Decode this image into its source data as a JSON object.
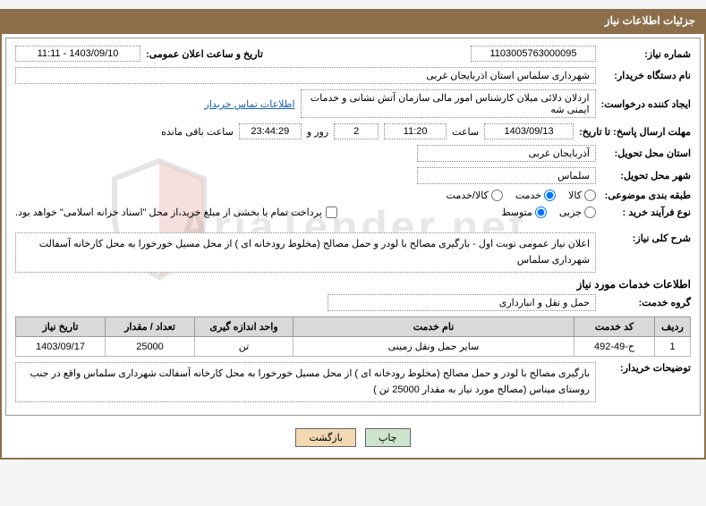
{
  "panel_title": "جزئیات اطلاعات نیاز",
  "labels": {
    "need_no": "شماره نیاز:",
    "announce_dt": "تاریخ و ساعت اعلان عمومی:",
    "buyer_org": "نام دستگاه خریدار:",
    "requester": "ایجاد کننده درخواست:",
    "contact_link": "اطلاعات تماس خریدار",
    "deadline": "مهلت ارسال پاسخ: تا تاریخ:",
    "time_label": "ساعت",
    "days_and": "روز و",
    "time_remaining": "ساعت باقی مانده",
    "province": "استان محل تحویل:",
    "city": "شهر محل تحویل:",
    "category": "طبقه بندی موضوعی:",
    "category_opts": {
      "goods": "کالا",
      "service": "خدمت",
      "goods_service": "کالا/خدمت"
    },
    "purchase_type": "نوع فرآیند خرید :",
    "purchase_opts": {
      "minor": "جزیی",
      "medium": "متوسط"
    },
    "payment_note": "پرداخت تمام یا بخشی از مبلغ خرید،از محل \"اسناد خزانه اسلامی\" خواهد بود.",
    "overview": "شرح کلی نیاز:",
    "services_info": "اطلاعات خدمات مورد نیاز",
    "service_group": "گروه خدمت:",
    "buyer_desc": "توضیحات خریدار:"
  },
  "values": {
    "need_no": "1103005763000095",
    "announce_dt": "1403/09/10 - 11:11",
    "buyer_org": "شهرداری سلماس استان اذربایجان غربی",
    "requester": "اردلان دلائی میلان کارشناس امور مالی سازمان آتش نشانی و خدمات ایمنی شه",
    "deadline_date": "1403/09/13",
    "deadline_time": "11:20",
    "remaining_days": "2",
    "remaining_time": "23:44:29",
    "province": "آذربایجان غربی",
    "city": "سلماس",
    "overview": "اعلان نیاز عمومی نوبت اول - بارگیری مصالح با لودر و حمل مصالح (مخلوط رودخانه ای ) از  محل مسیل خورخورا به محل کارخانه آسفالت شهرداری سلماس",
    "service_group": "حمل و نقل و انبارداری",
    "buyer_desc": "بارگیری مصالح با لودر و حمل مصالح (مخلوط رودخانه ای )  از  محل مسیل خورخورا به محل کارخانه آسفالت شهرداری سلماس واقع در جنب روستای میناس  (مصالح مورد نیاز به مقدار 25000 تن )"
  },
  "selections": {
    "category": "service",
    "purchase_type": "medium",
    "payment_checked": false
  },
  "table": {
    "headers": {
      "row": "ردیف",
      "service_code": "کد خدمت",
      "service_name": "نام خدمت",
      "unit": "واحد اندازه گیری",
      "qty": "تعداد / مقدار",
      "need_date": "تاریخ نیاز"
    },
    "rows": [
      {
        "row": "1",
        "code": "ح-49-492",
        "name": "سایر حمل ونقل زمینی",
        "unit": "تن",
        "qty": "25000",
        "date": "1403/09/17"
      }
    ]
  },
  "buttons": {
    "print": "چاپ",
    "back": "بازگشت"
  },
  "watermark": "AriaTender.net",
  "colors": {
    "header_bg": "#8c6f4a",
    "border": "#8c6f4a",
    "th_bg": "#d9d9d9",
    "link": "#1a5fb4",
    "btn_print": "#cce5cc",
    "btn_back": "#f2d9b3"
  }
}
